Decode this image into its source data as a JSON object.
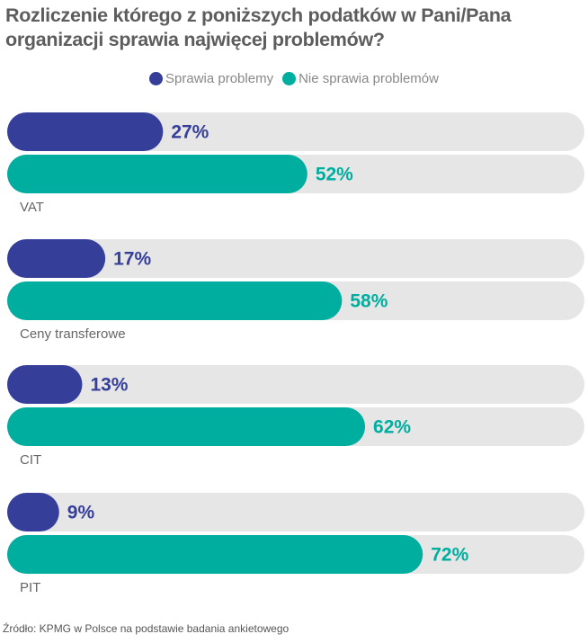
{
  "chart_data": {
    "type": "bar",
    "orientation": "horizontal",
    "title": "Rozliczenie którego z poniższych podatków w Pani/Pana organizacji sprawia najwięcej problemów?",
    "categories": [
      "VAT",
      "Ceny transferowe",
      "CIT",
      "PIT"
    ],
    "series": [
      {
        "name": "Sprawia problemy",
        "color": "#353f9a",
        "values": [
          27,
          17,
          13,
          9
        ]
      },
      {
        "name": "Nie sprawia problemów",
        "color": "#00ae9f",
        "values": [
          52,
          58,
          62,
          72
        ]
      }
    ],
    "value_suffix": "%",
    "xlim": [
      0,
      100
    ],
    "track_color": "#e6e6e6",
    "legend_position": "top-center",
    "grid": false
  },
  "source": "Źródło: KPMG w Polsce na podstawie badania ankietowego"
}
